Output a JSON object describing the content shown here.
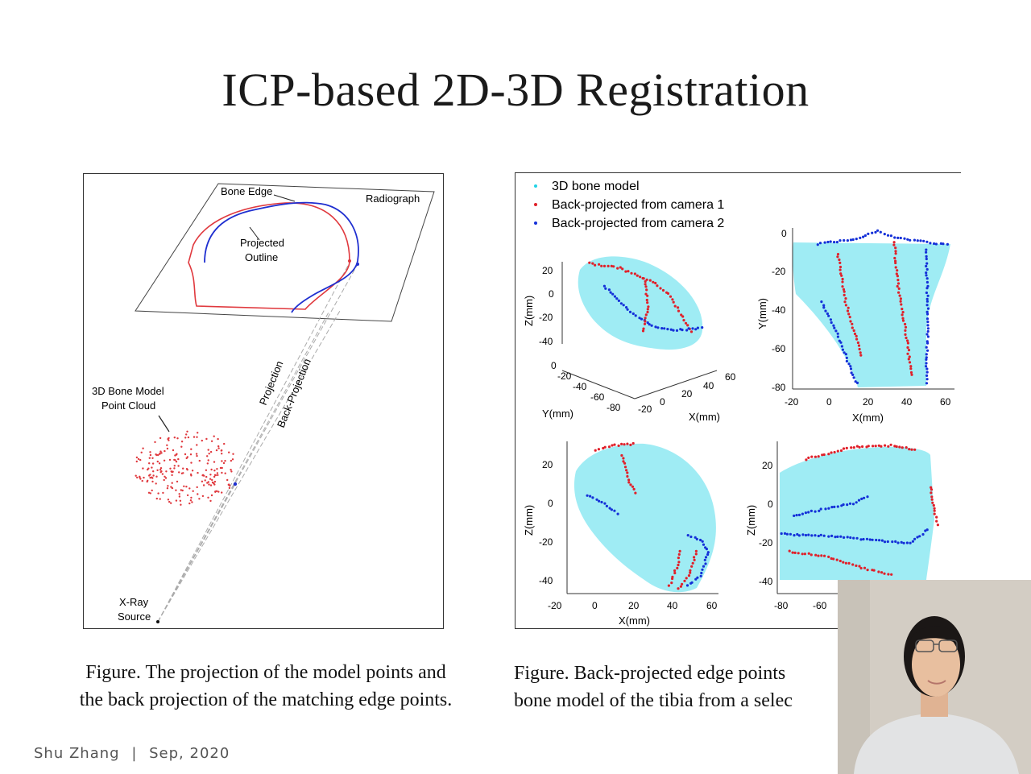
{
  "slide": {
    "title": "ICP-based 2D-3D Registration",
    "footer": {
      "author": "Shu  Zhang",
      "separator": "|",
      "date": "Sep,  2020"
    }
  },
  "left_figure": {
    "labels": {
      "bone_edge": "Bone Edge",
      "radiograph": "Radiograph",
      "projected_outline_1": "Projected",
      "projected_outline_2": "Outline",
      "bone_model_1": "3D Bone Model",
      "bone_model_2": "Point Cloud",
      "projection": "Projection",
      "back_projection": "Back-Projection",
      "xray_1": "X-Ray",
      "xray_2": "Source"
    },
    "caption_line1": "Figure. The projection of the model points and",
    "caption_line2": "the back projection of the matching edge points.",
    "colors": {
      "bone_edge": "#1f2fd0",
      "projected_outline": "#e0393e",
      "point_cloud": "#e0393e"
    }
  },
  "right_figure": {
    "legend": [
      {
        "label": "3D bone model",
        "color": "#22d3e6"
      },
      {
        "label": "Back-projected from camera 1",
        "color": "#e0202a"
      },
      {
        "label": "Back-projected from camera 2",
        "color": "#1430d8"
      }
    ],
    "panel_3d": {
      "zlabel": "Z(mm)",
      "ylabel": "Y(mm)",
      "xlabel": "X(mm)",
      "z_ticks": [
        "20",
        "0",
        "-20",
        "-40"
      ],
      "y_ticks": [
        "0",
        "-20",
        "-40",
        "-60",
        "-80"
      ],
      "x_ticks": [
        "-20",
        "0",
        "20",
        "40",
        "60"
      ]
    },
    "panel_xy": {
      "ylabel": "Y(mm)",
      "xlabel": "X(mm)",
      "y_ticks": [
        "0",
        "-20",
        "-40",
        "-60",
        "-80"
      ],
      "x_ticks": [
        "-20",
        "0",
        "20",
        "40",
        "60"
      ]
    },
    "panel_xz": {
      "ylabel": "Z(mm)",
      "xlabel": "X(mm)",
      "y_ticks": [
        "20",
        "0",
        "-20",
        "-40"
      ],
      "x_ticks": [
        "-20",
        "0",
        "20",
        "40",
        "60"
      ]
    },
    "panel_yz": {
      "ylabel": "Z(mm)",
      "y_ticks": [
        "20",
        "0",
        "-20",
        "-40"
      ],
      "x_ticks": [
        "-80",
        "-60"
      ]
    },
    "caption_line1": "Figure. Back-projected edge points",
    "caption_line2": "bone model of the tibia from a selec"
  },
  "webcam": {
    "background": "#d3cdc4",
    "shirt": "#e2e3e4",
    "hair": "#1b1716"
  }
}
